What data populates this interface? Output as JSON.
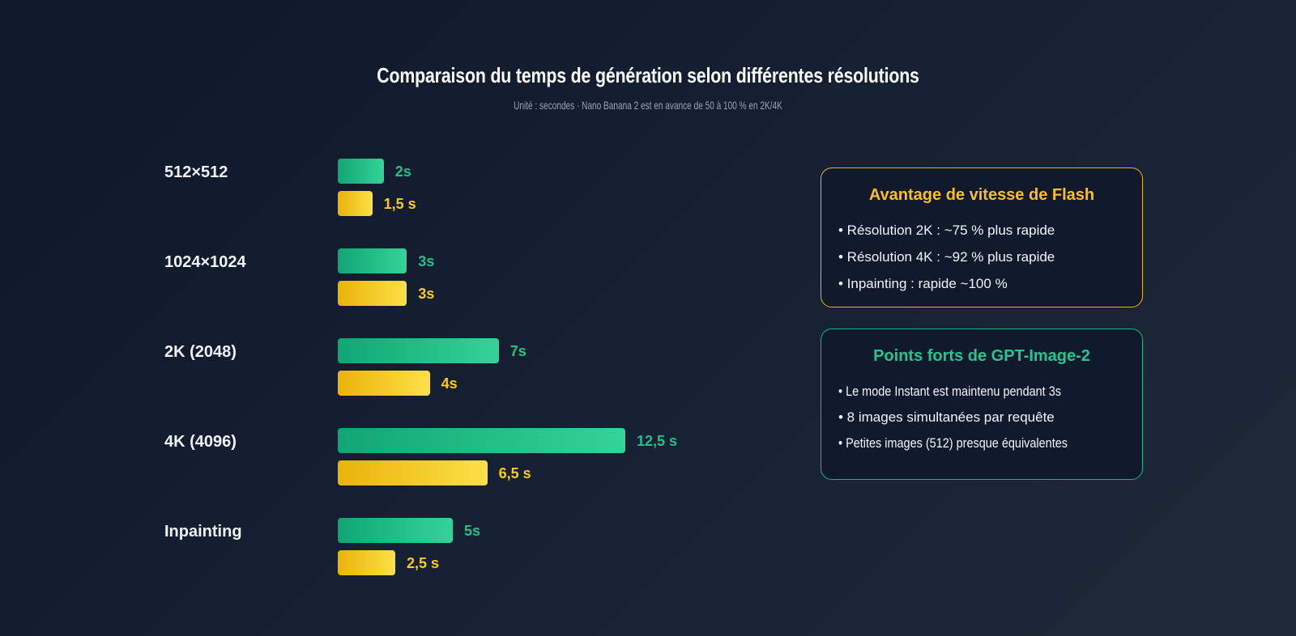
{
  "chart_data": {
    "type": "bar",
    "orientation": "horizontal",
    "title": "Comparaison du temps de génération selon différentes résolutions",
    "subtitle": "Unité : secondes · Nano Banana 2 est en avance de 50 à 100 % en 2K/4K",
    "categories": [
      "512×512",
      "1024×1024",
      "2K (2048)",
      "4K (4096)",
      "Inpainting"
    ],
    "series": [
      {
        "color": "#10b981",
        "values": [
          2,
          3,
          7,
          12.5,
          5
        ],
        "labels": [
          "2s",
          "3s",
          "7s",
          "12,5 s",
          "5s"
        ]
      },
      {
        "color": "#facc15",
        "values": [
          1.5,
          3,
          4,
          6.5,
          2.5
        ],
        "labels": [
          "1,5 s",
          "3s",
          "4s",
          "6,5 s",
          "2,5 s"
        ]
      }
    ],
    "xlim": [
      0,
      12.5
    ],
    "grid": false,
    "legend": "none"
  },
  "panels": {
    "flash": {
      "title": "Avantage de vitesse de Flash",
      "items": [
        "• Résolution 2K : ~75 % plus rapide",
        "• Résolution 4K : ~92 % plus rapide",
        "• Inpainting : rapide ~100 %"
      ],
      "color": "#fbbf24"
    },
    "gpt": {
      "title": "Points forts de GPT-Image-2",
      "items": [
        "• Le mode Instant est maintenu pendant 3s",
        "• 8 images simultanées par requête",
        "• Petites images (512) presque équivalentes"
      ],
      "color": "#10b981"
    }
  }
}
